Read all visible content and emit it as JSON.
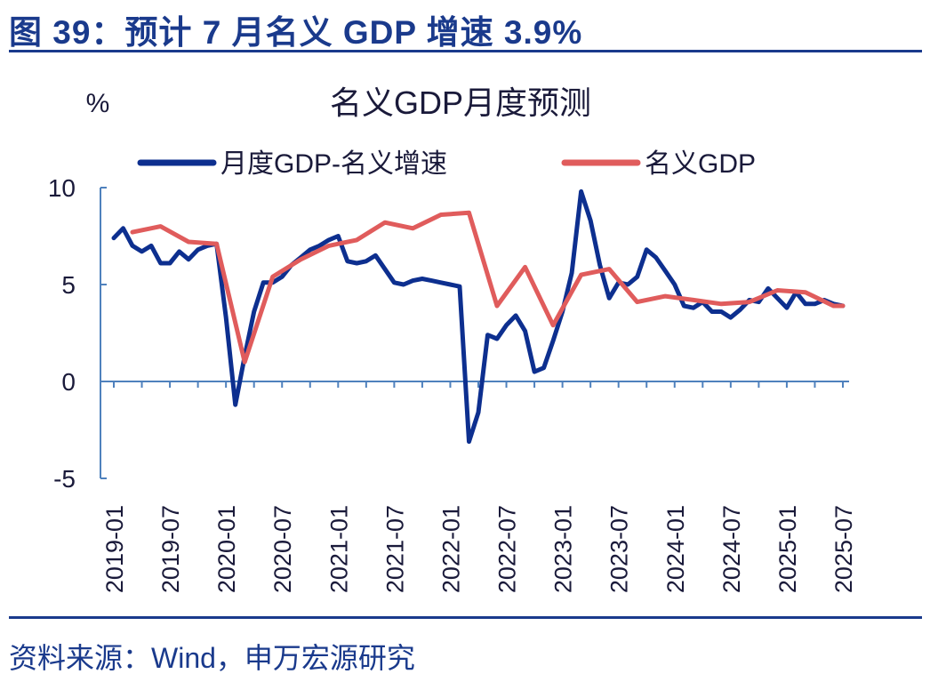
{
  "figure": {
    "title": "图 39：预计 7 月名义 GDP 增速 3.9%",
    "source": "资料来源：Wind，申万宏源研究"
  },
  "colors": {
    "heading": "#1a3a8c",
    "axis": "#4f81bd",
    "monthly_series": "#0d2f8f",
    "nominal_series": "#e05c5c",
    "text": "#1a1a3a"
  },
  "chart_data": {
    "type": "line",
    "title": "名义GDP月度预测",
    "ylabel": "%",
    "xlabel": "",
    "ylim": [
      -5,
      10
    ],
    "yticks": [
      10,
      5,
      0,
      -5
    ],
    "xticks": [
      "2019-01",
      "2019-07",
      "2020-01",
      "2020-07",
      "2021-01",
      "2021-07",
      "2022-01",
      "2022-07",
      "2023-01",
      "2023-07",
      "2024-01",
      "2024-07",
      "2025-01",
      "2025-07"
    ],
    "grid": false,
    "legend_position": "top",
    "series": [
      {
        "name": "月度GDP-名义增速",
        "x": [
          "2019-01",
          "2019-02",
          "2019-03",
          "2019-04",
          "2019-05",
          "2019-06",
          "2019-07",
          "2019-08",
          "2019-09",
          "2019-10",
          "2019-11",
          "2019-12",
          "2020-01",
          "2020-02",
          "2020-03",
          "2020-04",
          "2020-05",
          "2020-06",
          "2020-07",
          "2020-08",
          "2020-09",
          "2020-10",
          "2020-11",
          "2020-12",
          "2021-01",
          "2021-02",
          "2021-03",
          "2021-04",
          "2021-05",
          "2021-06",
          "2021-07",
          "2021-08",
          "2021-09",
          "2021-10",
          "2021-11",
          "2021-12",
          "2022-01",
          "2022-02",
          "2022-03",
          "2022-04",
          "2022-05",
          "2022-06",
          "2022-07",
          "2022-08",
          "2022-09",
          "2022-10",
          "2022-11",
          "2022-12",
          "2023-01",
          "2023-02",
          "2023-03",
          "2023-04",
          "2023-05",
          "2023-06",
          "2023-07",
          "2023-08",
          "2023-09",
          "2023-10",
          "2023-11",
          "2023-12",
          "2024-01",
          "2024-02",
          "2024-03",
          "2024-04",
          "2024-05",
          "2024-06",
          "2024-07",
          "2024-08",
          "2024-09",
          "2024-10",
          "2024-11",
          "2024-12",
          "2025-01",
          "2025-02",
          "2025-03",
          "2025-04",
          "2025-05",
          "2025-06",
          "2025-07"
        ],
        "values": [
          7.4,
          7.9,
          7.0,
          6.7,
          7.0,
          6.1,
          6.1,
          6.7,
          6.3,
          6.8,
          7.0,
          7.1,
          3.3,
          -1.2,
          1.3,
          3.6,
          5.1,
          5.1,
          5.4,
          6.0,
          6.4,
          6.8,
          7.0,
          7.3,
          7.5,
          6.2,
          6.1,
          6.2,
          6.5,
          5.8,
          5.1,
          5.0,
          5.2,
          5.3,
          5.2,
          5.1,
          5.0,
          4.9,
          -3.1,
          -1.6,
          2.4,
          2.2,
          2.9,
          3.4,
          2.6,
          0.5,
          0.7,
          2.1,
          3.6,
          5.6,
          9.8,
          8.3,
          6.0,
          4.3,
          5.1,
          5.0,
          5.4,
          6.8,
          6.4,
          5.7,
          5.0,
          3.9,
          3.8,
          4.1,
          3.6,
          3.6,
          3.3,
          3.7,
          4.2,
          4.1,
          4.8,
          4.3,
          3.8,
          4.6,
          4.0,
          4.0,
          4.2,
          4.0,
          3.9
        ]
      },
      {
        "name": "名义GDP",
        "x": [
          "2019-03",
          "2019-06",
          "2019-09",
          "2019-12",
          "2020-03",
          "2020-06",
          "2020-09",
          "2020-12",
          "2021-03",
          "2021-06",
          "2021-09",
          "2021-12",
          "2022-03",
          "2022-06",
          "2022-09",
          "2022-12",
          "2023-03",
          "2023-06",
          "2023-09",
          "2023-12",
          "2024-03",
          "2024-06",
          "2024-09",
          "2024-12",
          "2025-03",
          "2025-06",
          "2025-07"
        ],
        "values": [
          7.7,
          8.0,
          7.2,
          7.1,
          1.0,
          5.4,
          6.3,
          7.0,
          7.3,
          8.2,
          7.9,
          8.6,
          8.7,
          3.9,
          5.9,
          2.9,
          5.5,
          5.8,
          4.1,
          4.4,
          4.2,
          4.0,
          4.1,
          4.7,
          4.6,
          3.9,
          3.9
        ]
      }
    ]
  }
}
